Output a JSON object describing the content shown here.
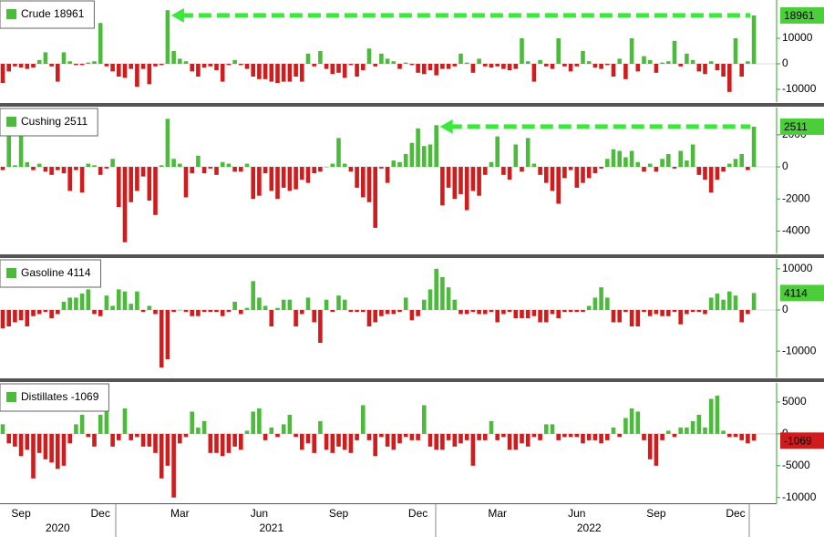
{
  "chart_data": [
    {
      "type": "bar",
      "title": "Crude",
      "up_color": "#4cbb3c",
      "down_color": "#d01c1c",
      "arrow": true,
      "arrow_color": "#3de83d",
      "ylim": [
        -15000,
        25000
      ],
      "yticks": [
        -10000,
        0,
        10000
      ],
      "values": [
        -7500,
        -3000,
        -1000,
        -1500,
        -2000,
        -1500,
        1500,
        4500,
        -1000,
        -7000,
        4500,
        1000,
        -500,
        -500,
        500,
        1000,
        16000,
        -1000,
        -3000,
        -5000,
        -5500,
        -2000,
        -9000,
        -2000,
        -8000,
        -1000,
        -500,
        21000,
        5000,
        2000,
        1000,
        -3000,
        -5000,
        -1500,
        -1000,
        -2500,
        -7000,
        -500,
        1500,
        -500,
        -2000,
        -5000,
        -6000,
        -6000,
        -7000,
        -7500,
        -7000,
        -7000,
        -5000,
        -7000,
        4000,
        -1000,
        5000,
        -2000,
        -4000,
        -3500,
        -5500,
        -500,
        -5000,
        -2500,
        6000,
        -1000,
        4000,
        2000,
        1000,
        -2000,
        500,
        -500,
        -3500,
        -4000,
        -2500,
        -4500,
        -2000,
        -2000,
        -1000,
        4000,
        500,
        -3500,
        2000,
        -1000,
        -1500,
        -1000,
        -2000,
        -2500,
        -2000,
        10000,
        1000,
        -7000,
        1500,
        -1000,
        -2000,
        10000,
        -1000,
        -3000,
        -1000,
        5000,
        1000,
        -1500,
        -2000,
        -500,
        -5000,
        2000,
        -6000,
        10000,
        -3000,
        3000,
        1500,
        -3500,
        500,
        1000,
        9000,
        -1000,
        4000,
        1500,
        -3000,
        -4000,
        1000,
        -2500,
        -5000,
        -11000,
        10000,
        -5000,
        1000,
        18961
      ]
    },
    {
      "type": "bar",
      "title": "Cushing",
      "up_color": "#4cbb3c",
      "down_color": "#d01c1c",
      "arrow": true,
      "arrow_color": "#3de83d",
      "ylim": [
        -5400,
        3700
      ],
      "yticks": [
        -4000,
        -2000,
        0,
        2000
      ],
      "values": [
        -200,
        2000,
        100,
        2000,
        300,
        -200,
        200,
        -300,
        -500,
        -200,
        -400,
        -1500,
        -200,
        -1600,
        200,
        100,
        -500,
        -100,
        500,
        -2500,
        -4700,
        -2200,
        -1500,
        -600,
        -2100,
        -3000,
        100,
        3000,
        500,
        200,
        -1900,
        -400,
        700,
        -400,
        -100,
        -500,
        300,
        200,
        -300,
        -300,
        200,
        -2000,
        -1800,
        -400,
        -1500,
        -2000,
        -1300,
        -1500,
        -1400,
        -800,
        -1000,
        -400,
        -300,
        0,
        200,
        1800,
        200,
        -300,
        -1300,
        -1900,
        -2200,
        -3800,
        -100,
        -1000,
        400,
        300,
        800,
        1500,
        2400,
        1300,
        1400,
        2600,
        -2400,
        -1300,
        -2000,
        -1700,
        -2700,
        -1500,
        -1800,
        -500,
        300,
        1900,
        -500,
        -800,
        1400,
        -300,
        1800,
        200,
        -500,
        -1000,
        -1500,
        -2300,
        -700,
        -200,
        -1300,
        -1000,
        -700,
        -400,
        -100,
        500,
        1100,
        1000,
        600,
        1000,
        300,
        -300,
        200,
        -300,
        500,
        800,
        -100,
        1000,
        400,
        1400,
        -500,
        -800,
        -1600,
        -800,
        -300,
        200,
        500,
        800,
        -200,
        2511
      ]
    },
    {
      "type": "bar",
      "title": "Gasoline",
      "up_color": "#4cbb3c",
      "down_color": "#d01c1c",
      "arrow": false,
      "ylim": [
        -16400,
        12400
      ],
      "yticks": [
        -10000,
        0,
        10000
      ],
      "values": [
        -4500,
        -4000,
        -3000,
        -2500,
        -4000,
        -1500,
        -1000,
        -500,
        -2000,
        -1000,
        2000,
        3000,
        3000,
        4000,
        5000,
        -1000,
        -1500,
        3500,
        1000,
        5000,
        4500,
        1500,
        4500,
        -500,
        1000,
        -1000,
        -14000,
        -12000,
        -500,
        0,
        -500,
        -1500,
        -1500,
        -500,
        -500,
        -500,
        -1500,
        -500,
        2000,
        -1000,
        500,
        7000,
        3000,
        1000,
        -4000,
        500,
        2500,
        2500,
        -4000,
        -1000,
        3000,
        -3000,
        -8000,
        2500,
        -500,
        3500,
        2500,
        -500,
        -500,
        -500,
        -4000,
        -3000,
        -1500,
        -1000,
        -1000,
        -500,
        3000,
        -2500,
        -1500,
        2500,
        5000,
        10000,
        8000,
        5500,
        2500,
        -1000,
        -1000,
        -500,
        -1000,
        -1000,
        -500,
        -3000,
        -1000,
        -500,
        -2000,
        -2000,
        -2000,
        -1500,
        -3000,
        -3000,
        -1000,
        -2000,
        -500,
        -500,
        -500,
        -500,
        1000,
        3000,
        5500,
        3000,
        -3000,
        -3000,
        -500,
        -4000,
        -4000,
        -500,
        -1500,
        -1000,
        -1500,
        -1500,
        -500,
        -3500,
        -1000,
        -500,
        -500,
        -1000,
        3000,
        4000,
        2500,
        4500,
        3500,
        -3000,
        -1000,
        4114
      ]
    },
    {
      "type": "bar",
      "title": "Distillates",
      "up_color": "#4cbb3c",
      "down_color": "#d01c1c",
      "arrow": false,
      "ylim": [
        -10900,
        8000
      ],
      "yticks": [
        -10000,
        -5000,
        0,
        5000
      ],
      "values": [
        1500,
        -1500,
        -2000,
        -3500,
        -2500,
        -7000,
        -3000,
        -4000,
        -4500,
        -5500,
        -5000,
        -1500,
        1500,
        3000,
        -500,
        -2000,
        3000,
        4000,
        -2000,
        -1000,
        4000,
        -1000,
        -500,
        -2000,
        -2000,
        -3000,
        -7000,
        -5000,
        -10000,
        -1500,
        -500,
        3500,
        1000,
        2000,
        -3000,
        -3000,
        -3500,
        -3000,
        -2000,
        -2500,
        500,
        3500,
        4000,
        -1000,
        1000,
        -500,
        1500,
        3000,
        -500,
        -2500,
        -1500,
        -3000,
        2000,
        -2500,
        -3000,
        -2000,
        -2500,
        -3000,
        -1000,
        4500,
        -1000,
        -3500,
        -500,
        -2000,
        -2500,
        -1500,
        -500,
        -1000,
        -1000,
        4500,
        -2000,
        -2500,
        -2500,
        -1000,
        -2000,
        -1500,
        -1000,
        -5000,
        -1000,
        -1000,
        2000,
        -1000,
        -500,
        -2500,
        -2500,
        -1500,
        -2000,
        -500,
        -1000,
        1500,
        1500,
        -1000,
        -500,
        -500,
        -500,
        -1500,
        -1000,
        -1000,
        -1500,
        -1000,
        1000,
        -500,
        2500,
        4000,
        3500,
        -1000,
        -4000,
        -5000,
        -1000,
        500,
        -500,
        1000,
        1000,
        2000,
        3000,
        1000,
        5500,
        6000,
        500,
        -500,
        -500,
        -1000,
        -1500,
        -1069
      ]
    }
  ],
  "x_axis": {
    "categories": [
      null,
      null,
      null,
      "Sep",
      null,
      null,
      null,
      null,
      null,
      null,
      null,
      null,
      null,
      null,
      null,
      null,
      "Dec",
      null,
      null,
      null,
      null,
      null,
      null,
      null,
      null,
      null,
      null,
      null,
      null,
      "Mar",
      null,
      null,
      null,
      null,
      null,
      null,
      null,
      null,
      null,
      null,
      null,
      null,
      "Jun",
      null,
      null,
      null,
      null,
      null,
      null,
      null,
      null,
      null,
      null,
      null,
      null,
      "Sep",
      null,
      null,
      null,
      null,
      null,
      null,
      null,
      null,
      null,
      null,
      null,
      null,
      "Dec",
      null,
      null,
      null,
      null,
      null,
      null,
      null,
      null,
      null,
      null,
      null,
      null,
      "Mar",
      null,
      null,
      null,
      null,
      null,
      null,
      null,
      null,
      null,
      null,
      null,
      null,
      "Jun",
      null,
      null,
      null,
      null,
      null,
      null,
      null,
      null,
      null,
      null,
      null,
      null,
      "Sep",
      null,
      null,
      null,
      null,
      null,
      null,
      null,
      null,
      null,
      null,
      null,
      null,
      "Dec",
      null,
      null,
      null
    ],
    "years": [
      null,
      null,
      null,
      null,
      null,
      null,
      null,
      null,
      null,
      "2020",
      null,
      null,
      null,
      null,
      null,
      null,
      null,
      null,
      null,
      null,
      null,
      null,
      null,
      null,
      null,
      null,
      null,
      null,
      null,
      null,
      null,
      null,
      null,
      null,
      null,
      null,
      null,
      null,
      null,
      null,
      null,
      null,
      null,
      null,
      "2021",
      null,
      null,
      null,
      null,
      null,
      null,
      null,
      null,
      null,
      null,
      null,
      null,
      null,
      null,
      null,
      null,
      null,
      null,
      null,
      null,
      null,
      null,
      null,
      null,
      null,
      null,
      null,
      null,
      null,
      null,
      null,
      null,
      null,
      null,
      null,
      null,
      null,
      null,
      null,
      null,
      null,
      null,
      null,
      null,
      null,
      null,
      null,
      null,
      null,
      null,
      null,
      "2022",
      null,
      null,
      null,
      null,
      null,
      null,
      null,
      null,
      null,
      null,
      null,
      null,
      null,
      null,
      null,
      null,
      null,
      null,
      null,
      null,
      null,
      null,
      null,
      null,
      null,
      null,
      null,
      null,
      null
    ]
  }
}
